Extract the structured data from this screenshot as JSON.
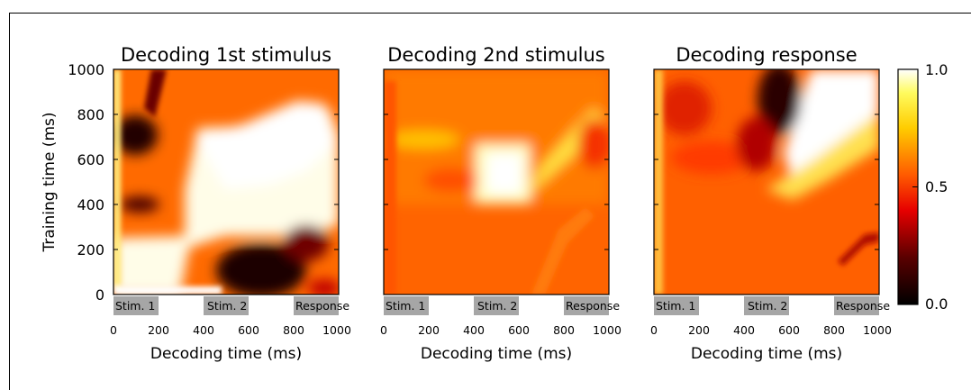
{
  "chart_data": [
    {
      "type": "heatmap",
      "title": "Decoding 1st stimulus",
      "xlabel": "Decoding time (ms)",
      "ylabel": "Training time (ms)",
      "xlim": [
        0,
        1000
      ],
      "ylim": [
        0,
        1000
      ],
      "xticks": [
        "0",
        "200",
        "400",
        "600",
        "800",
        "1000"
      ],
      "yticks": [
        "0",
        "200",
        "400",
        "600",
        "800",
        "1000"
      ],
      "value_range": [
        0.0,
        1.0
      ],
      "epochs": [
        {
          "label": "Stim. 1",
          "start": 0,
          "end": 200
        },
        {
          "label": "Stim. 2",
          "start": 400,
          "end": 600
        },
        {
          "label": "Response",
          "start": 800,
          "end": 1000
        }
      ],
      "description": "Strong diagonal band of high decoding, with high off-diagonal generalisation between ~250-700 ms training time"
    },
    {
      "type": "heatmap",
      "title": "Decoding 2nd stimulus",
      "xlabel": "Decoding time (ms)",
      "ylabel": "",
      "xlim": [
        0,
        1000
      ],
      "ylim": [
        0,
        1000
      ],
      "xticks": [
        "0",
        "200",
        "400",
        "600",
        "800",
        "1000"
      ],
      "value_range": [
        0.0,
        1.0
      ],
      "epochs": [
        {
          "label": "Stim. 1",
          "start": 0,
          "end": 200
        },
        {
          "label": "Stim. 2",
          "start": 400,
          "end": 600
        },
        {
          "label": "Response",
          "start": 800,
          "end": 1000
        }
      ]
    },
    {
      "type": "heatmap",
      "title": "Decoding response",
      "xlabel": "Decoding time (ms)",
      "ylabel": "",
      "xlim": [
        0,
        1000
      ],
      "ylim": [
        0,
        1000
      ],
      "xticks": [
        "0",
        "200",
        "400",
        "600",
        "800",
        "1000"
      ],
      "value_range": [
        0.0,
        1.0
      ],
      "epochs": [
        {
          "label": "Stim. 1",
          "start": 0,
          "end": 200
        },
        {
          "label": "Stim. 2",
          "start": 400,
          "end": 600
        },
        {
          "label": "Response",
          "start": 800,
          "end": 1000
        }
      ]
    }
  ],
  "colorbar": {
    "colormap": "hot",
    "min": 0.0,
    "max": 1.0,
    "ticks": [
      "0.0",
      "0.5",
      "1.0"
    ]
  }
}
